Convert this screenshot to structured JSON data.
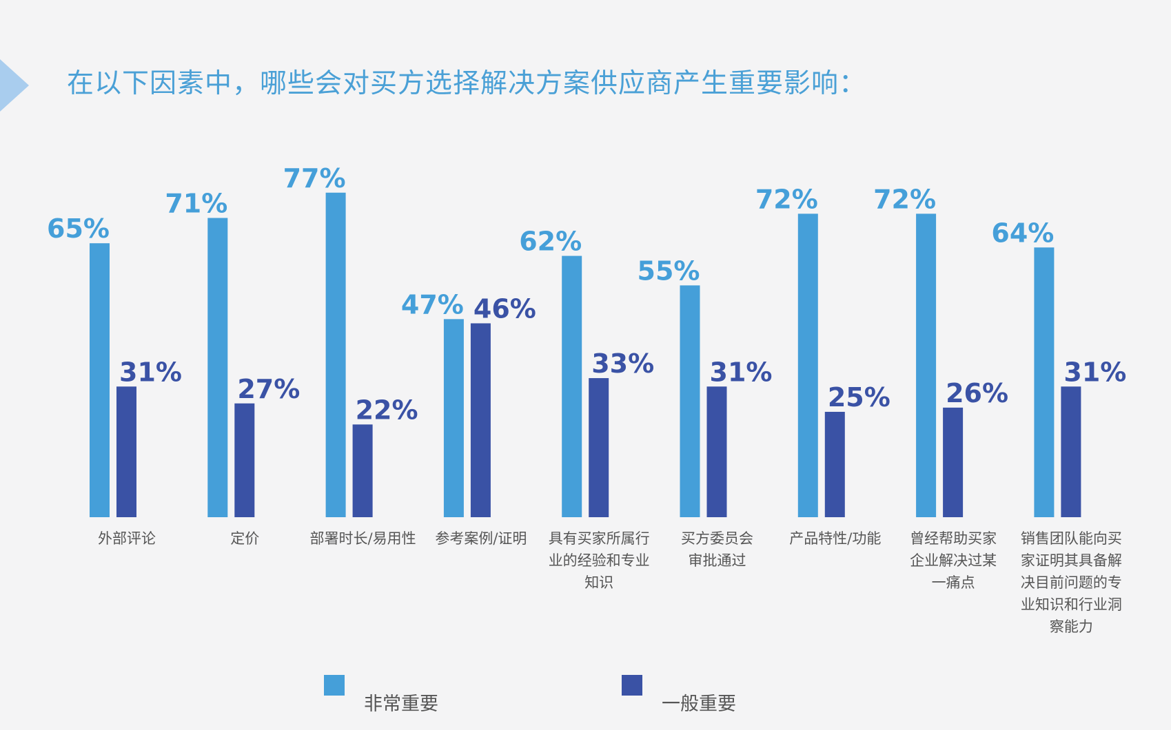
{
  "title": "在以下因素中，哪些会对买方选择解决方案供应商产生重要影响：",
  "colors": {
    "series1": "#459fd9",
    "series2": "#3a52a5",
    "accent_arrow": "#a9cdee"
  },
  "chart_data": {
    "type": "bar",
    "title": "在以下因素中，哪些会对买方选择解决方案供应商产生重要影响：",
    "categories": [
      [
        "外部评论"
      ],
      [
        "定价"
      ],
      [
        "部署时长/易用性"
      ],
      [
        "参考案例/证明"
      ],
      [
        "具有买家所属行",
        "业的经验和专业",
        "知识"
      ],
      [
        "买方委员会",
        "审批通过"
      ],
      [
        "产品特性/功能"
      ],
      [
        "曾经帮助买家",
        "企业解决过某",
        "一痛点"
      ],
      [
        "销售团队能向买",
        "家证明其具备解",
        "决目前问题的专",
        "业知识和行业洞",
        "察能力"
      ]
    ],
    "series": [
      {
        "name": "非常重要",
        "values": [
          65,
          71,
          77,
          47,
          62,
          55,
          72,
          72,
          64
        ],
        "labels": [
          "65%",
          "71%",
          "77%",
          "47%",
          "62%",
          "55%",
          "72%",
          "72%",
          "64%"
        ]
      },
      {
        "name": "一般重要",
        "values": [
          31,
          27,
          22,
          46,
          33,
          31,
          25,
          26,
          31
        ],
        "labels": [
          "31%",
          "27%",
          "22%",
          "46%",
          "33%",
          "31%",
          "25%",
          "26%",
          "31%"
        ]
      }
    ],
    "ylim": [
      0,
      100
    ],
    "grid": false,
    "legend_position": "bottom"
  }
}
